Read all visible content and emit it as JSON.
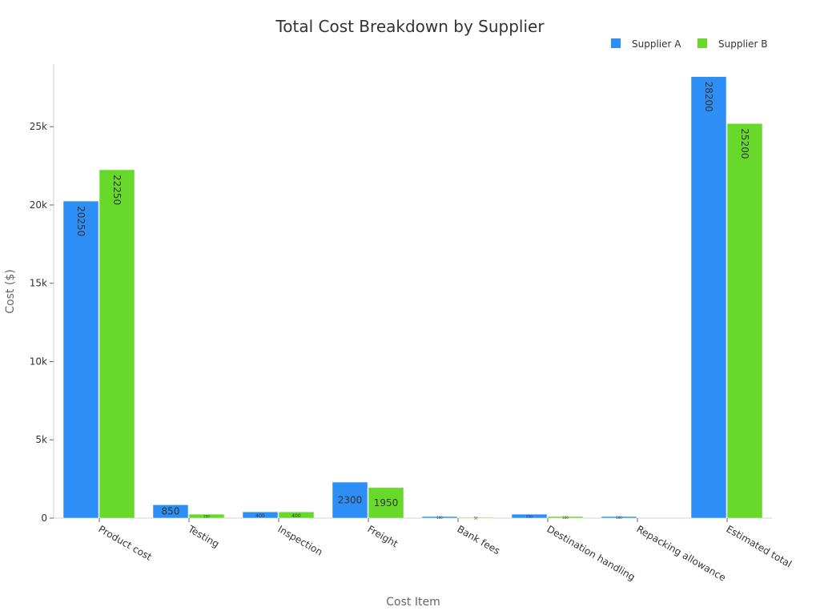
{
  "chart_data": {
    "type": "bar",
    "title": "Total Cost Breakdown by Supplier",
    "xlabel": "Cost Item",
    "ylabel": "Cost ($)",
    "categories": [
      "Product cost",
      "Testing",
      "Inspection",
      "Freight",
      "Bank fees",
      "Destination handling",
      "Repacking allowance",
      "Estimated total"
    ],
    "series": [
      {
        "name": "Supplier A",
        "color": "#2d8ff5",
        "values": [
          20250,
          850,
          400,
          2300,
          100,
          250,
          100,
          28200
        ]
      },
      {
        "name": "Supplier B",
        "color": "#66d92a",
        "values": [
          22250,
          250,
          400,
          1950,
          50,
          100,
          0,
          25200
        ]
      }
    ],
    "ylim": [
      0,
      29000
    ],
    "yticks": [
      0,
      5000,
      10000,
      15000,
      20000,
      25000
    ],
    "ytick_labels": [
      "0",
      "5k",
      "10k",
      "15k",
      "20k",
      "25k"
    ],
    "legend": "top-right",
    "grid": false
  }
}
